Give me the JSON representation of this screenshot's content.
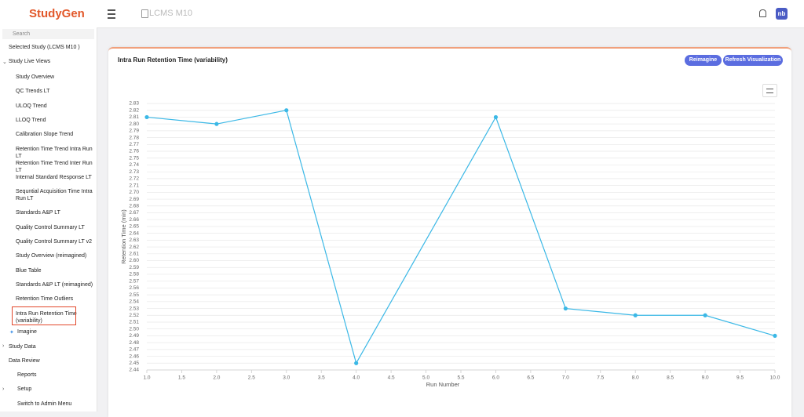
{
  "header": {
    "logo": "StudyGen",
    "study": "LCMS M10",
    "user": "nb"
  },
  "sidebar": {
    "search": "Search",
    "selected_study": "Selected Study (LCMS M10 )",
    "live_views": {
      "label": "Study Live Views",
      "items": [
        "Study Overview",
        "QC Trends LT",
        "ULOQ Trend",
        "LLOQ Trend",
        "Calibration Slope Trend",
        "Retention Time Trend Intra Run LT",
        "Retention Time Trend Inter Run LT",
        "Internal Standard Response LT",
        "Sequntial Acquisition Time Intra Run LT",
        "Standards A&P LT",
        "Quality Control Summary LT",
        "Quality Control Summary LT v2",
        "Study Overview (reimagined)",
        "Blue Table",
        "Standards A&P LT (reimagined)",
        "Retention Time Outliers",
        "Intra Run Retention Time (variability)"
      ],
      "imagine": "Imagine"
    },
    "study_data": "Study Data",
    "data_review": "Data Review",
    "reports": "Reports",
    "setup": "Setup",
    "switch": "Switch to Admin Menu"
  },
  "buttons": {
    "reimagine": "Reimagine",
    "refresh": "Refresh Visualization"
  },
  "chart_data": {
    "type": "line",
    "title": "Intra Run Retention Time (variability)",
    "x_label": "Run Number",
    "y_label": "Retention Time (min)",
    "color": "#3bb8e6",
    "x": [
      1,
      2,
      3,
      4,
      6,
      7,
      8,
      9,
      10
    ],
    "values": [
      2.81,
      2.8,
      2.82,
      2.45,
      2.81,
      2.53,
      2.52,
      2.52,
      2.49
    ],
    "xlim": [
      1,
      10
    ],
    "ylim": [
      2.44,
      2.83
    ],
    "grid": true,
    "xticks": [
      {
        "value": 1,
        "label": "1.0"
      },
      1.5,
      {
        "value": 2,
        "label": "2.0"
      },
      2.5,
      {
        "value": 3,
        "label": "3.0"
      },
      3.5,
      {
        "value": 4,
        "label": "4.0"
      },
      4.5,
      {
        "value": 5,
        "label": "5.0"
      },
      5.5,
      {
        "value": 6,
        "label": "6.0"
      },
      6.5,
      {
        "value": 7,
        "label": "7.0"
      },
      7.5,
      {
        "value": 8,
        "label": "8.0"
      },
      8.5,
      {
        "value": 9,
        "label": "9.0"
      },
      9.5,
      {
        "value": 10,
        "label": "10.0"
      }
    ],
    "yticks": [
      2.44,
      2.45,
      2.46,
      2.47,
      2.48,
      2.49,
      {
        "value": 2.5,
        "label": "2.50"
      },
      2.51,
      2.52,
      2.53,
      2.54,
      2.55,
      2.56,
      2.57,
      2.58,
      2.59,
      {
        "value": 2.6,
        "label": "2.60"
      },
      2.61,
      2.62,
      2.63,
      2.64,
      2.65,
      2.66,
      2.67,
      2.68,
      2.69,
      {
        "value": 2.7,
        "label": "2.70"
      },
      2.71,
      2.72,
      2.73,
      2.74,
      2.75,
      2.76,
      2.77,
      2.78,
      2.79,
      {
        "value": 2.8,
        "label": "2.80"
      },
      2.81,
      2.82,
      2.83
    ]
  }
}
